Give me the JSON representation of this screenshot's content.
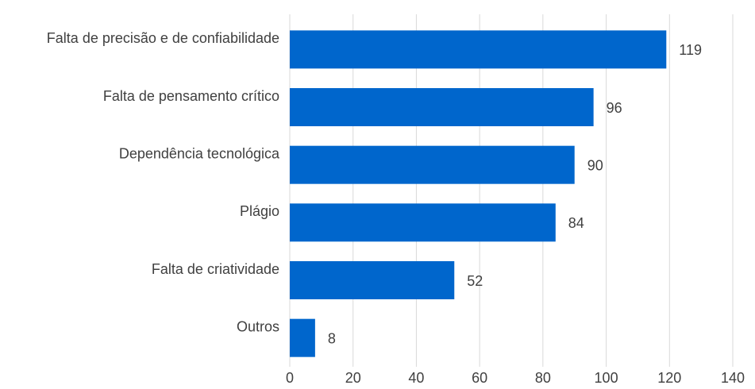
{
  "chart_data": {
    "type": "hbar",
    "categories": [
      "Falta de precisão e de confiabilidade",
      "Falta de pensamento crítico",
      "Dependência tecnológica",
      "Plágio",
      "Falta de criatividade",
      "Outros"
    ],
    "values": [
      119,
      96,
      90,
      84,
      52,
      8
    ],
    "color": "#0066cc",
    "xlim": [
      0,
      140
    ],
    "xticks": [
      0,
      20,
      40,
      60,
      80,
      100,
      120,
      140
    ],
    "grid": true
  }
}
